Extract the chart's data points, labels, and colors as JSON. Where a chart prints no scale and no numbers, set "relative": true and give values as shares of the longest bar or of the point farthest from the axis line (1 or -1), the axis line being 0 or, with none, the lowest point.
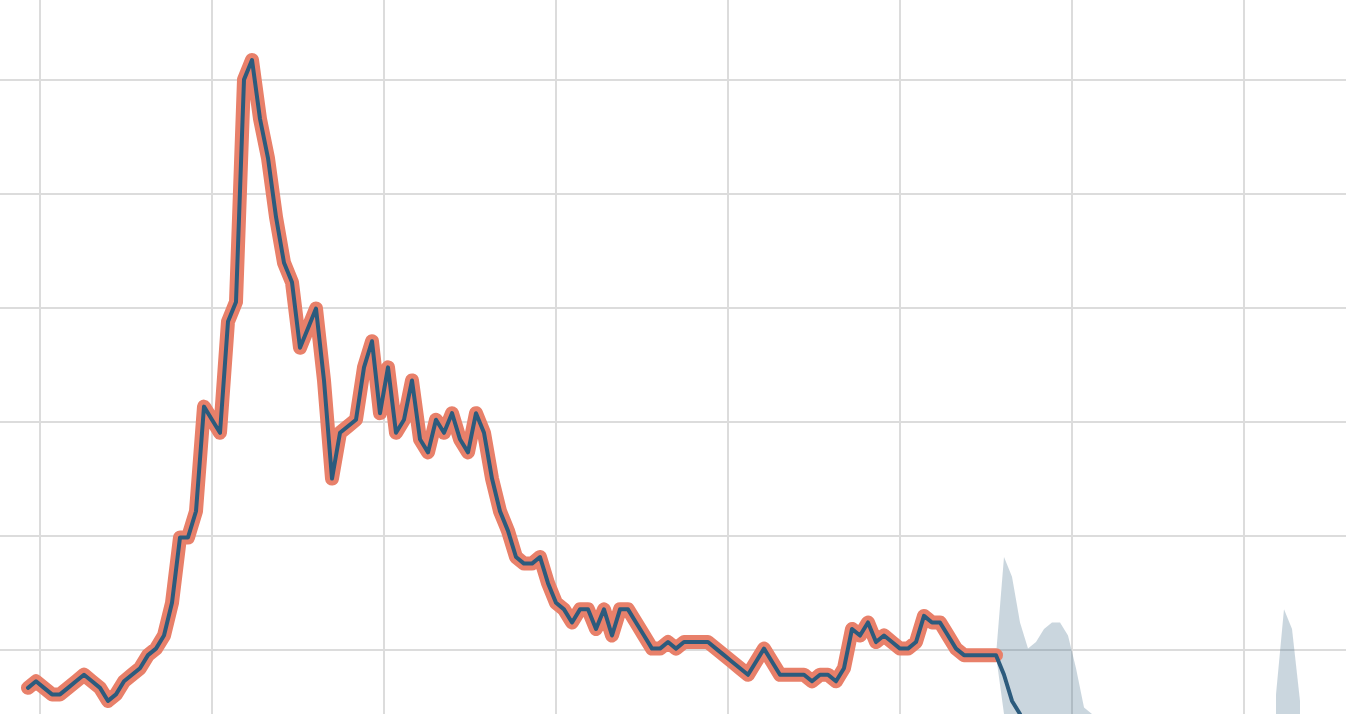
{
  "chart_data": {
    "type": "line",
    "relative": true,
    "grid": true,
    "legend": false,
    "categories": [
      null,
      null,
      null,
      null,
      null,
      null,
      null,
      null,
      null,
      null,
      null,
      null,
      null,
      null,
      null,
      null,
      null,
      null,
      null,
      null,
      null,
      null,
      null,
      null,
      null,
      null,
      null,
      null,
      null,
      null,
      null,
      null,
      null,
      null,
      null,
      null,
      null,
      null,
      null,
      null,
      null,
      null,
      null,
      null,
      null,
      null,
      null,
      null,
      null,
      null,
      null,
      null,
      null,
      null,
      null,
      null,
      null,
      null,
      null,
      null,
      null,
      null,
      null,
      null,
      null,
      null,
      null,
      null,
      null,
      null,
      null,
      null,
      null,
      null,
      null,
      null,
      null,
      null,
      null,
      null,
      null,
      null,
      null,
      null,
      null,
      null,
      null,
      null,
      null,
      null,
      null,
      null,
      null,
      null,
      null,
      null,
      null,
      null,
      null,
      null,
      null,
      null,
      null,
      null,
      null,
      null,
      null,
      null,
      null,
      null,
      null,
      null,
      null,
      null,
      null,
      null,
      null,
      null,
      null,
      null,
      null,
      null,
      null,
      null,
      null,
      null,
      null,
      null,
      null,
      null,
      null,
      null,
      null,
      null,
      null,
      null,
      null,
      null,
      null,
      null,
      null,
      null,
      null,
      null,
      null,
      null,
      null,
      null,
      null,
      null,
      null,
      null,
      null,
      null,
      null,
      null,
      null,
      null,
      null,
      null
    ],
    "series": [
      {
        "color": "#e8806a",
        "values": [
          0.04,
          0.05,
          0.04,
          0.03,
          0.03,
          0.04,
          0.05,
          0.06,
          0.05,
          0.04,
          0.02,
          0.03,
          0.05,
          0.06,
          0.07,
          0.09,
          0.1,
          0.12,
          0.17,
          0.27,
          0.27,
          0.31,
          0.47,
          0.45,
          0.43,
          0.6,
          0.63,
          0.97,
          1,
          0.91,
          0.85,
          0.76,
          0.69,
          0.66,
          0.56,
          0.59,
          0.62,
          0.51,
          0.36,
          0.43,
          0.44,
          0.45,
          0.53,
          0.57,
          0.46,
          0.53,
          0.43,
          0.45,
          0.51,
          0.42,
          0.4,
          0.45,
          0.43,
          0.46,
          0.42,
          0.4,
          0.46,
          0.43,
          0.36,
          0.31,
          0.28,
          0.24,
          0.23,
          0.23,
          0.24,
          0.2,
          0.17,
          0.16,
          0.14,
          0.16,
          0.16,
          0.13,
          0.16,
          0.12,
          0.16,
          0.16,
          0.14,
          0.12,
          0.1,
          0.1,
          0.11,
          0.1,
          0.11,
          0.11,
          0.11,
          0.11,
          0.1,
          0.09,
          0.08,
          0.07,
          0.06,
          0.08,
          0.1,
          0.08,
          0.06,
          0.06,
          0.06,
          0.06,
          0.05,
          0.06,
          0.06,
          0.05,
          0.07,
          0.13,
          0.12,
          0.14,
          0.11,
          0.12,
          0.11,
          0.1,
          0.1,
          0.11,
          0.15,
          0.14,
          0.14,
          0.12,
          0.1,
          0.09,
          0.09,
          0.09,
          0.09,
          0.09,
          null,
          null,
          null,
          null,
          null,
          null,
          null,
          null,
          null,
          null,
          null,
          null,
          null,
          null,
          null,
          null,
          null,
          null,
          null,
          null,
          null,
          null,
          null,
          null,
          null,
          null,
          null,
          null,
          null,
          null,
          null,
          null,
          null,
          null,
          null,
          null,
          null,
          null
        ]
      },
      {
        "color": "#2c5b7d",
        "values": [
          0.04,
          0.05,
          0.04,
          0.03,
          0.03,
          0.04,
          0.05,
          0.06,
          0.05,
          0.04,
          0.02,
          0.03,
          0.05,
          0.06,
          0.07,
          0.09,
          0.1,
          0.12,
          0.17,
          0.27,
          0.27,
          0.31,
          0.47,
          0.45,
          0.43,
          0.6,
          0.63,
          0.97,
          1,
          0.91,
          0.85,
          0.76,
          0.69,
          0.66,
          0.56,
          0.59,
          0.62,
          0.51,
          0.36,
          0.43,
          0.44,
          0.45,
          0.53,
          0.57,
          0.46,
          0.53,
          0.43,
          0.45,
          0.51,
          0.42,
          0.4,
          0.45,
          0.43,
          0.46,
          0.42,
          0.4,
          0.46,
          0.43,
          0.36,
          0.31,
          0.28,
          0.24,
          0.23,
          0.23,
          0.24,
          0.2,
          0.17,
          0.16,
          0.14,
          0.16,
          0.16,
          0.13,
          0.16,
          0.12,
          0.16,
          0.16,
          0.14,
          0.12,
          0.1,
          0.1,
          0.11,
          0.1,
          0.11,
          0.11,
          0.11,
          0.11,
          0.1,
          0.09,
          0.08,
          0.07,
          0.06,
          0.08,
          0.1,
          0.08,
          0.06,
          0.06,
          0.06,
          0.06,
          0.05,
          0.06,
          0.06,
          0.05,
          0.07,
          0.13,
          0.12,
          0.14,
          0.11,
          0.12,
          0.11,
          0.1,
          0.1,
          0.11,
          0.15,
          0.14,
          0.14,
          0.12,
          0.1,
          0.09,
          0.09,
          0.09,
          0.09,
          0.09,
          0.06,
          0.02,
          0,
          null,
          null,
          null,
          null,
          null,
          null,
          null,
          null,
          null,
          null,
          null,
          null,
          null,
          null,
          null,
          null,
          null,
          null,
          null,
          null,
          null,
          null,
          null,
          null,
          null,
          null,
          null,
          null,
          null,
          null,
          null,
          null,
          null,
          null,
          null
        ],
        "lower": [
          null,
          null,
          null,
          null,
          null,
          null,
          null,
          null,
          null,
          null,
          null,
          null,
          null,
          null,
          null,
          null,
          null,
          null,
          null,
          null,
          null,
          null,
          null,
          null,
          null,
          null,
          null,
          null,
          null,
          null,
          null,
          null,
          null,
          null,
          null,
          null,
          null,
          null,
          null,
          null,
          null,
          null,
          null,
          null,
          null,
          null,
          null,
          null,
          null,
          null,
          null,
          null,
          null,
          null,
          null,
          null,
          null,
          null,
          null,
          null,
          null,
          null,
          null,
          null,
          null,
          null,
          null,
          null,
          null,
          null,
          null,
          null,
          null,
          null,
          null,
          null,
          null,
          null,
          null,
          null,
          null,
          null,
          null,
          null,
          null,
          null,
          null,
          null,
          null,
          null,
          null,
          null,
          null,
          null,
          null,
          null,
          null,
          null,
          null,
          null,
          null,
          null,
          null,
          null,
          null,
          null,
          null,
          null,
          null,
          null,
          null,
          null,
          null,
          null,
          null,
          null,
          null,
          null,
          null,
          null,
          null,
          0.09,
          0,
          0,
          0,
          0,
          0,
          0,
          0,
          0,
          0,
          0,
          0,
          0,
          null,
          null,
          null,
          null,
          null,
          null,
          null,
          null,
          null,
          null,
          null,
          null,
          null,
          null,
          null,
          null,
          null,
          null,
          null,
          null,
          null,
          null,
          0,
          0,
          0,
          0
        ],
        "upper": [
          null,
          null,
          null,
          null,
          null,
          null,
          null,
          null,
          null,
          null,
          null,
          null,
          null,
          null,
          null,
          null,
          null,
          null,
          null,
          null,
          null,
          null,
          null,
          null,
          null,
          null,
          null,
          null,
          null,
          null,
          null,
          null,
          null,
          null,
          null,
          null,
          null,
          null,
          null,
          null,
          null,
          null,
          null,
          null,
          null,
          null,
          null,
          null,
          null,
          null,
          null,
          null,
          null,
          null,
          null,
          null,
          null,
          null,
          null,
          null,
          null,
          null,
          null,
          null,
          null,
          null,
          null,
          null,
          null,
          null,
          null,
          null,
          null,
          null,
          null,
          null,
          null,
          null,
          null,
          null,
          null,
          null,
          null,
          null,
          null,
          null,
          null,
          null,
          null,
          null,
          null,
          null,
          null,
          null,
          null,
          null,
          null,
          null,
          null,
          null,
          null,
          null,
          null,
          null,
          null,
          null,
          null,
          null,
          null,
          null,
          null,
          null,
          null,
          null,
          null,
          null,
          null,
          null,
          null,
          null,
          null,
          0.09,
          0.24,
          0.21,
          0.14,
          0.1,
          0.11,
          0.13,
          0.14,
          0.14,
          0.12,
          0.07,
          0.01,
          0,
          null,
          null,
          null,
          null,
          null,
          null,
          null,
          null,
          null,
          null,
          null,
          null,
          null,
          null,
          null,
          null,
          null,
          null,
          null,
          null,
          null,
          null,
          0.03,
          0.16,
          0.13,
          0.02
        ]
      }
    ]
  }
}
